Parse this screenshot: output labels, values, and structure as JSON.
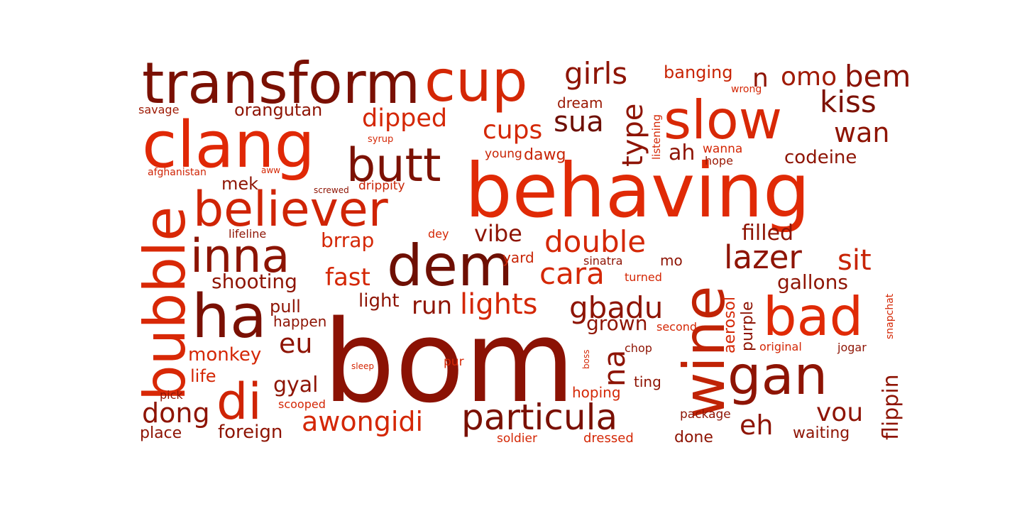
{
  "words": [
    {
      "text": "bom",
      "color": "#8b1204"
    },
    {
      "text": "behaving",
      "color": "#e02a06"
    },
    {
      "text": "transform",
      "color": "#7a1003"
    },
    {
      "text": "cup",
      "color": "#d42705"
    },
    {
      "text": "clang",
      "color": "#e02806"
    },
    {
      "text": "slow",
      "color": "#d82806"
    },
    {
      "text": "butt",
      "color": "#7c1103"
    },
    {
      "text": "believer",
      "color": "#cf2405"
    },
    {
      "text": "dem",
      "color": "#6e0f03"
    },
    {
      "text": "wine",
      "color": "#c02305"
    },
    {
      "text": "bubble",
      "color": "#d82806"
    },
    {
      "text": "inna",
      "color": "#8c1404"
    },
    {
      "text": "ha",
      "color": "#7a1003"
    },
    {
      "text": "bad",
      "color": "#e02a06"
    },
    {
      "text": "gan",
      "color": "#8e1404"
    },
    {
      "text": "di",
      "color": "#cf2405"
    },
    {
      "text": "particula",
      "color": "#7a1003"
    },
    {
      "text": "girls",
      "color": "#8e1404"
    },
    {
      "text": "bem",
      "color": "#8a1204"
    },
    {
      "text": "omo",
      "color": "#a01a04"
    },
    {
      "text": "n",
      "color": "#8e1404"
    },
    {
      "text": "banging",
      "color": "#c82405"
    },
    {
      "text": "kiss",
      "color": "#7c1103"
    },
    {
      "text": "dipped",
      "color": "#d42705"
    },
    {
      "text": "orangutan",
      "color": "#8e1404"
    },
    {
      "text": "savage",
      "color": "#9e1a04"
    },
    {
      "text": "wrong",
      "color": "#d42705"
    },
    {
      "text": "dream",
      "color": "#9a1804"
    },
    {
      "text": "cups",
      "color": "#d42705"
    },
    {
      "text": "sua",
      "color": "#6e0f03"
    },
    {
      "text": "wan",
      "color": "#8e1404"
    },
    {
      "text": "type",
      "color": "#8e1404"
    },
    {
      "text": "listening",
      "color": "#d42705"
    },
    {
      "text": "syrup",
      "color": "#d42705"
    },
    {
      "text": "young",
      "color": "#c82405"
    },
    {
      "text": "dawg",
      "color": "#c82405"
    },
    {
      "text": "ah",
      "color": "#8e1404"
    },
    {
      "text": "wanna",
      "color": "#d42705"
    },
    {
      "text": "hope",
      "color": "#9a1804"
    },
    {
      "text": "codeine",
      "color": "#8e1404"
    },
    {
      "text": "afghanistan",
      "color": "#cf2405"
    },
    {
      "text": "aww",
      "color": "#d42705"
    },
    {
      "text": "mek",
      "color": "#8e1404"
    },
    {
      "text": "screwed",
      "color": "#8e1404"
    },
    {
      "text": "drippity",
      "color": "#c82405"
    },
    {
      "text": "lifeline",
      "color": "#8e1404"
    },
    {
      "text": "brrap",
      "color": "#d42705"
    },
    {
      "text": "dey",
      "color": "#d42705"
    },
    {
      "text": "vibe",
      "color": "#8e1404"
    },
    {
      "text": "double",
      "color": "#d42705"
    },
    {
      "text": "filled",
      "color": "#8e1404"
    },
    {
      "text": "lazer",
      "color": "#8e1404"
    },
    {
      "text": "sit",
      "color": "#c82405"
    },
    {
      "text": "sinatra",
      "color": "#8e1404"
    },
    {
      "text": "mo",
      "color": "#8e1404"
    },
    {
      "text": "yard",
      "color": "#c82405"
    },
    {
      "text": "cara",
      "color": "#d42705"
    },
    {
      "text": "shooting",
      "color": "#8e1404"
    },
    {
      "text": "fast",
      "color": "#d42705"
    },
    {
      "text": "turned",
      "color": "#d42705"
    },
    {
      "text": "aerosol",
      "color": "#d42705"
    },
    {
      "text": "gallons",
      "color": "#8e1404"
    },
    {
      "text": "snapchat",
      "color": "#d42705"
    },
    {
      "text": "pull",
      "color": "#8e1404"
    },
    {
      "text": "light",
      "color": "#8e1404"
    },
    {
      "text": "run",
      "color": "#8e1404"
    },
    {
      "text": "lights",
      "color": "#d42705"
    },
    {
      "text": "gbadu",
      "color": "#8e1404"
    },
    {
      "text": "purple",
      "color": "#8e1404"
    },
    {
      "text": "happen",
      "color": "#8e1404"
    },
    {
      "text": "grown",
      "color": "#8e1404"
    },
    {
      "text": "second",
      "color": "#d42705"
    },
    {
      "text": "eu",
      "color": "#8e1404"
    },
    {
      "text": "monkey",
      "color": "#d42705"
    },
    {
      "text": "na",
      "color": "#8e1404"
    },
    {
      "text": "chop",
      "color": "#8e1404"
    },
    {
      "text": "original",
      "color": "#d42705"
    },
    {
      "text": "jogar",
      "color": "#8e1404"
    },
    {
      "text": "life",
      "color": "#d42705"
    },
    {
      "text": "sleep",
      "color": "#d42705"
    },
    {
      "text": "pur",
      "color": "#d42705"
    },
    {
      "text": "boss",
      "color": "#d42705"
    },
    {
      "text": "flippin",
      "color": "#8e1404"
    },
    {
      "text": "gyal",
      "color": "#8e1404"
    },
    {
      "text": "ting",
      "color": "#8e1404"
    },
    {
      "text": "pick",
      "color": "#8e1404"
    },
    {
      "text": "hoping",
      "color": "#d42705"
    },
    {
      "text": "dong",
      "color": "#8e1404"
    },
    {
      "text": "scooped",
      "color": "#d42705"
    },
    {
      "text": "awongidi",
      "color": "#d42705"
    },
    {
      "text": "package",
      "color": "#8e1404"
    },
    {
      "text": "vou",
      "color": "#8e1404"
    },
    {
      "text": "eh",
      "color": "#8e1404"
    },
    {
      "text": "place",
      "color": "#8e1404"
    },
    {
      "text": "foreign",
      "color": "#8e1404"
    },
    {
      "text": "soldier",
      "color": "#d42705"
    },
    {
      "text": "dressed",
      "color": "#d42705"
    },
    {
      "text": "done",
      "color": "#8e1404"
    },
    {
      "text": "waiting",
      "color": "#8e1404"
    }
  ]
}
